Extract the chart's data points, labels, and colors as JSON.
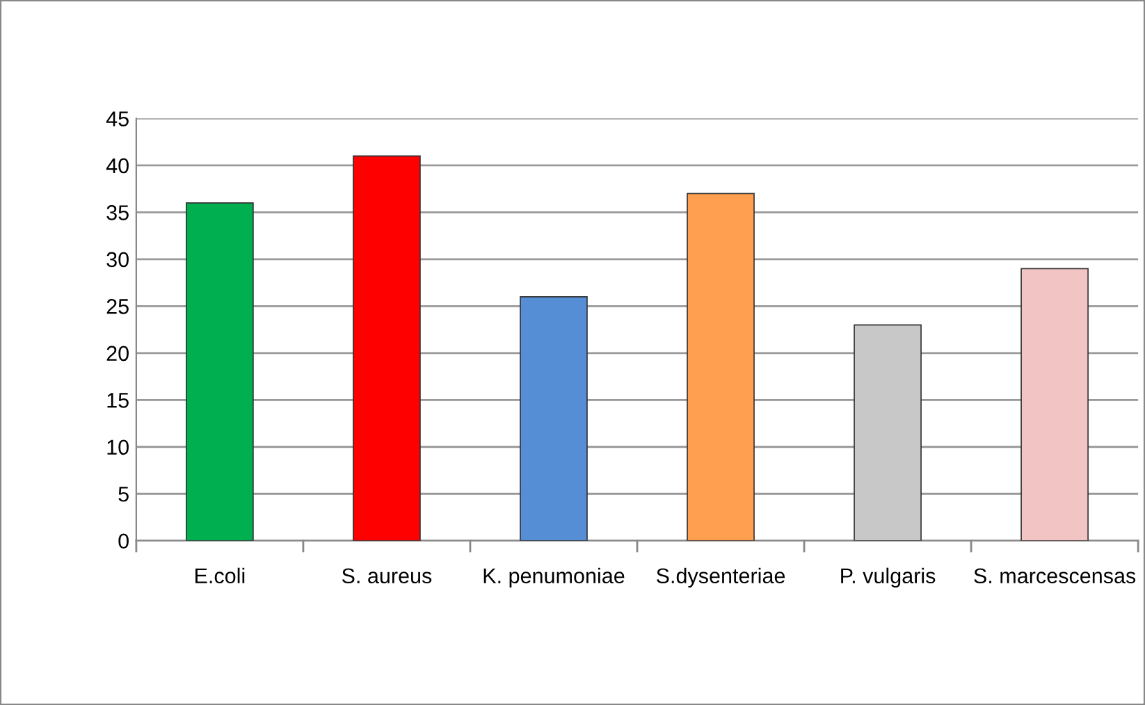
{
  "chart_data": {
    "type": "bar",
    "categories": [
      "E.coli",
      "S. aureus",
      "K. penumoniae",
      "S.dysenteriae",
      "P. vulgaris",
      "S. marcescensas"
    ],
    "values": [
      36,
      41,
      26,
      37,
      23,
      29
    ],
    "colors": [
      "#00b050",
      "#ff0000",
      "#558ed5",
      "#ff9f4f",
      "#c8c8c8",
      "#f2c4c4"
    ],
    "ylim": [
      0,
      45
    ],
    "yticks": [
      0,
      5,
      10,
      15,
      20,
      25,
      30,
      35,
      40,
      45
    ],
    "grid": "y"
  }
}
